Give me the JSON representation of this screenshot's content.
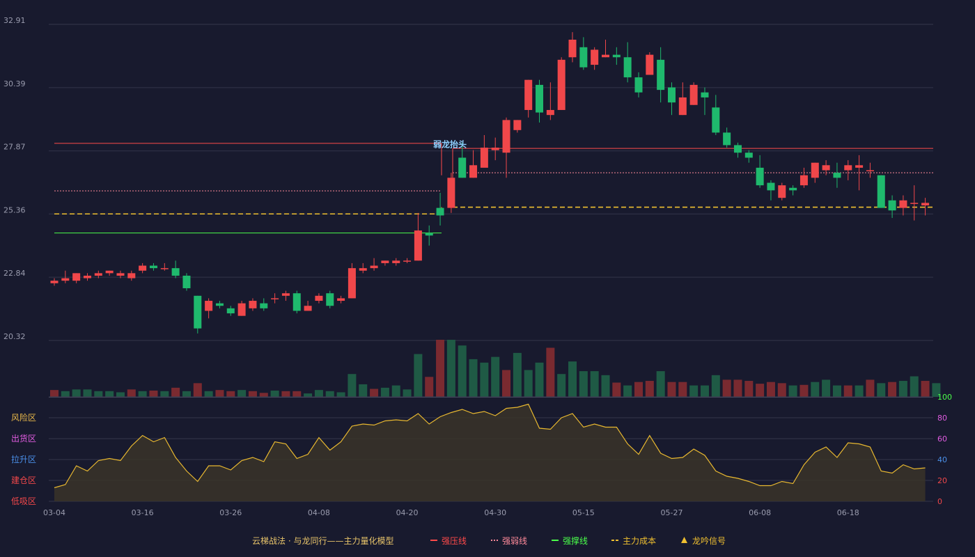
{
  "chart_data": {
    "type": "candlestick",
    "price_axis": {
      "ticks": [
        "32.91",
        "30.39",
        "27.87",
        "25.36",
        "22.84",
        "20.32"
      ],
      "min": 20.32,
      "max": 32.91
    },
    "x_ticks": [
      {
        "label": "03-04",
        "i": 0
      },
      {
        "label": "03-16",
        "i": 8
      },
      {
        "label": "03-26",
        "i": 16
      },
      {
        "label": "04-08",
        "i": 24
      },
      {
        "label": "04-20",
        "i": 32
      },
      {
        "label": "04-30",
        "i": 40
      },
      {
        "label": "05-15",
        "i": 48
      },
      {
        "label": "05-27",
        "i": 56
      },
      {
        "label": "06-08",
        "i": 64
      },
      {
        "label": "06-18",
        "i": 72
      }
    ],
    "candles": [
      [
        22.6,
        22.7,
        22.5,
        22.8
      ],
      [
        22.7,
        22.8,
        22.6,
        23.1
      ],
      [
        22.7,
        23.0,
        22.6,
        23.0
      ],
      [
        22.8,
        22.9,
        22.7,
        23.0
      ],
      [
        22.9,
        23.0,
        22.8,
        23.1
      ],
      [
        23.0,
        23.1,
        22.9,
        23.1
      ],
      [
        22.9,
        23.0,
        22.8,
        23.1
      ],
      [
        22.8,
        23.0,
        22.7,
        23.1
      ],
      [
        23.1,
        23.3,
        23.0,
        23.4
      ],
      [
        23.3,
        23.2,
        23.1,
        23.4
      ],
      [
        23.2,
        23.2,
        23.1,
        23.4
      ],
      [
        23.2,
        22.9,
        22.8,
        23.5
      ],
      [
        22.9,
        22.4,
        22.3,
        23.0
      ],
      [
        22.1,
        20.8,
        20.6,
        22.1
      ],
      [
        21.5,
        21.9,
        21.2,
        22.0
      ],
      [
        21.8,
        21.7,
        21.6,
        21.9
      ],
      [
        21.6,
        21.4,
        21.3,
        21.7
      ],
      [
        21.3,
        21.8,
        21.3,
        21.9
      ],
      [
        21.6,
        21.9,
        21.5,
        22.0
      ],
      [
        21.8,
        21.6,
        21.5,
        22.0
      ],
      [
        22.0,
        22.0,
        21.8,
        22.2
      ],
      [
        22.1,
        22.2,
        21.9,
        22.3
      ],
      [
        22.2,
        21.5,
        21.4,
        22.3
      ],
      [
        21.5,
        21.7,
        21.5,
        21.9
      ],
      [
        21.9,
        22.1,
        21.8,
        22.2
      ],
      [
        22.2,
        21.7,
        21.6,
        22.3
      ],
      [
        21.9,
        22.0,
        21.8,
        22.1
      ],
      [
        22.0,
        23.2,
        22.0,
        23.4
      ],
      [
        23.1,
        23.2,
        23.0,
        23.4
      ],
      [
        23.2,
        23.3,
        23.1,
        23.6
      ],
      [
        23.4,
        23.5,
        23.3,
        23.5
      ],
      [
        23.4,
        23.5,
        23.3,
        23.6
      ],
      [
        23.5,
        23.5,
        23.4,
        23.6
      ],
      [
        23.5,
        24.7,
        23.5,
        25.4
      ],
      [
        24.6,
        24.5,
        24.1,
        24.9
      ],
      [
        25.6,
        25.3,
        24.9,
        26.2
      ],
      [
        25.6,
        26.8,
        25.4,
        27.0
      ],
      [
        27.6,
        26.8,
        26.8,
        28.2
      ],
      [
        26.8,
        27.3,
        26.8,
        27.9
      ],
      [
        27.2,
        28.0,
        27.3,
        28.5
      ],
      [
        27.9,
        28.0,
        27.5,
        28.4
      ],
      [
        27.8,
        29.1,
        26.8,
        29.2
      ],
      [
        28.7,
        29.1,
        28.6,
        29.1
      ],
      [
        29.5,
        30.7,
        29.2,
        30.7
      ],
      [
        30.5,
        29.4,
        29.0,
        30.7
      ],
      [
        29.3,
        29.5,
        29.1,
        30.6
      ],
      [
        29.5,
        31.5,
        29.5,
        31.6
      ],
      [
        31.6,
        32.3,
        31.4,
        32.6
      ],
      [
        32.0,
        31.2,
        31.1,
        32.4
      ],
      [
        31.3,
        31.9,
        31.1,
        32.0
      ],
      [
        31.6,
        31.7,
        31.6,
        32.3
      ],
      [
        31.7,
        31.6,
        31.3,
        32.0
      ],
      [
        31.6,
        30.8,
        30.6,
        32.2
      ],
      [
        30.8,
        30.2,
        30.0,
        31.0
      ],
      [
        30.9,
        31.7,
        30.9,
        31.8
      ],
      [
        31.5,
        30.3,
        29.8,
        32.0
      ],
      [
        30.4,
        29.8,
        29.3,
        30.6
      ],
      [
        29.3,
        30.0,
        29.3,
        30.6
      ],
      [
        29.7,
        30.5,
        29.7,
        30.6
      ],
      [
        30.2,
        30.0,
        29.3,
        30.4
      ],
      [
        29.6,
        28.6,
        28.5,
        30.1
      ],
      [
        28.6,
        28.1,
        28.0,
        28.8
      ],
      [
        28.1,
        27.8,
        27.6,
        28.2
      ],
      [
        27.8,
        27.6,
        27.4,
        27.9
      ],
      [
        27.2,
        26.5,
        26.4,
        27.7
      ],
      [
        26.6,
        26.3,
        25.9,
        26.7
      ],
      [
        26.0,
        26.5,
        25.9,
        26.6
      ],
      [
        26.4,
        26.3,
        26.1,
        26.5
      ],
      [
        26.5,
        26.9,
        26.4,
        27.2
      ],
      [
        26.8,
        27.4,
        26.6,
        27.4
      ],
      [
        27.1,
        27.3,
        26.9,
        27.5
      ],
      [
        27.0,
        26.8,
        26.4,
        27.4
      ],
      [
        27.1,
        27.3,
        26.7,
        27.5
      ],
      [
        27.2,
        27.3,
        26.3,
        27.7
      ],
      [
        27.1,
        27.1,
        26.8,
        27.4
      ],
      [
        26.9,
        25.6,
        25.6,
        26.9
      ],
      [
        25.9,
        25.5,
        25.2,
        26.1
      ],
      [
        25.6,
        25.9,
        25.3,
        26.1
      ],
      [
        25.8,
        25.8,
        25.1,
        26.5
      ],
      [
        25.7,
        25.8,
        25.3,
        26.0
      ]
    ],
    "volume": [
      [
        0.12,
        1
      ],
      [
        0.1,
        -1
      ],
      [
        0.13,
        -1
      ],
      [
        0.13,
        -1
      ],
      [
        0.1,
        -1
      ],
      [
        0.1,
        -1
      ],
      [
        0.08,
        -1
      ],
      [
        0.13,
        1
      ],
      [
        0.1,
        -1
      ],
      [
        0.11,
        1
      ],
      [
        0.1,
        -1
      ],
      [
        0.16,
        1
      ],
      [
        0.1,
        -1
      ],
      [
        0.24,
        1
      ],
      [
        0.1,
        -1
      ],
      [
        0.12,
        1
      ],
      [
        0.1,
        1
      ],
      [
        0.12,
        -1
      ],
      [
        0.1,
        1
      ],
      [
        0.07,
        1
      ],
      [
        0.11,
        -1
      ],
      [
        0.1,
        1
      ],
      [
        0.1,
        1
      ],
      [
        0.06,
        -1
      ],
      [
        0.12,
        -1
      ],
      [
        0.1,
        -1
      ],
      [
        0.08,
        -1
      ],
      [
        0.4,
        -1
      ],
      [
        0.22,
        -1
      ],
      [
        0.14,
        1
      ],
      [
        0.16,
        -1
      ],
      [
        0.2,
        -1
      ],
      [
        0.13,
        -1
      ],
      [
        0.75,
        -1
      ],
      [
        0.35,
        1
      ],
      [
        1.0,
        1
      ],
      [
        1.0,
        -1
      ],
      [
        0.9,
        -1
      ],
      [
        0.66,
        -1
      ],
      [
        0.6,
        -1
      ],
      [
        0.7,
        -1
      ],
      [
        0.47,
        1
      ],
      [
        0.77,
        -1
      ],
      [
        0.47,
        -1
      ],
      [
        0.6,
        -1
      ],
      [
        0.86,
        1
      ],
      [
        0.4,
        -1
      ],
      [
        0.62,
        -1
      ],
      [
        0.45,
        -1
      ],
      [
        0.45,
        -1
      ],
      [
        0.38,
        -1
      ],
      [
        0.25,
        1
      ],
      [
        0.2,
        -1
      ],
      [
        0.26,
        1
      ],
      [
        0.28,
        1
      ],
      [
        0.45,
        -1
      ],
      [
        0.26,
        1
      ],
      [
        0.26,
        1
      ],
      [
        0.2,
        -1
      ],
      [
        0.2,
        -1
      ],
      [
        0.38,
        -1
      ],
      [
        0.3,
        1
      ],
      [
        0.3,
        1
      ],
      [
        0.28,
        1
      ],
      [
        0.23,
        1
      ],
      [
        0.26,
        1
      ],
      [
        0.24,
        1
      ],
      [
        0.2,
        -1
      ],
      [
        0.21,
        1
      ],
      [
        0.26,
        -1
      ],
      [
        0.3,
        -1
      ],
      [
        0.2,
        -1
      ],
      [
        0.2,
        1
      ],
      [
        0.2,
        -1
      ],
      [
        0.3,
        1
      ],
      [
        0.24,
        -1
      ],
      [
        0.26,
        1
      ],
      [
        0.28,
        -1
      ],
      [
        0.36,
        -1
      ],
      [
        0.28,
        1
      ],
      [
        0.24,
        -1
      ]
    ],
    "resistance_line": {
      "left": 28.17,
      "right": 27.97
    },
    "weak_line": {
      "left": 26.28,
      "right": 27.0
    },
    "support_line": {
      "left": 24.6
    },
    "cost_line": {
      "left": 25.36,
      "right": 25.63
    },
    "signal_label": "弱龙抬头",
    "indicator": {
      "values": [
        13,
        16,
        34,
        29,
        39,
        41,
        39,
        53,
        63,
        57,
        61,
        42,
        29,
        19,
        34,
        34,
        30,
        39,
        42,
        38,
        57,
        55,
        41,
        45,
        61,
        49,
        57,
        72,
        74,
        73,
        77,
        78,
        77,
        84,
        74,
        81,
        85,
        88,
        84,
        86,
        82,
        89,
        90,
        93,
        70,
        69,
        80,
        84,
        71,
        74,
        71,
        71,
        55,
        45,
        63,
        46,
        41,
        42,
        50,
        44,
        29,
        24,
        22,
        19,
        15,
        15,
        19,
        17,
        35,
        47,
        52,
        42,
        56,
        55,
        52,
        29,
        27,
        35,
        31,
        32
      ],
      "ticks": [
        "100",
        "80",
        "60",
        "40",
        "20",
        "0"
      ],
      "zones": [
        {
          "label": "风险区",
          "color": "#e8b84a"
        },
        {
          "label": "出货区",
          "color": "#e05ce0"
        },
        {
          "label": "拉升区",
          "color": "#4a8fe8"
        },
        {
          "label": "建仓区",
          "color": "#f0474a"
        },
        {
          "label": "低吸区",
          "color": "#f0474a"
        }
      ]
    },
    "legend": [
      {
        "label": "云梯战法 · 与龙同行——主力量化模型",
        "color": "#e8c46a",
        "marker": "none"
      },
      {
        "label": "强压线",
        "color": "#ff4a4a",
        "marker": "solid"
      },
      {
        "label": "强弱线",
        "color": "#ff8a9a",
        "marker": "dotted"
      },
      {
        "label": "强撑线",
        "color": "#4aff4a",
        "marker": "solid"
      },
      {
        "label": "主力成本",
        "color": "#f0c030",
        "marker": "dashed"
      },
      {
        "label": "龙吟信号",
        "color": "#f0c030",
        "marker": "triangle"
      }
    ],
    "colors": {
      "up": "#f0474a",
      "down": "#1fb96d",
      "bg": "#181a2e",
      "grid": "#33354a",
      "indicator_line": "#e8b830"
    }
  }
}
